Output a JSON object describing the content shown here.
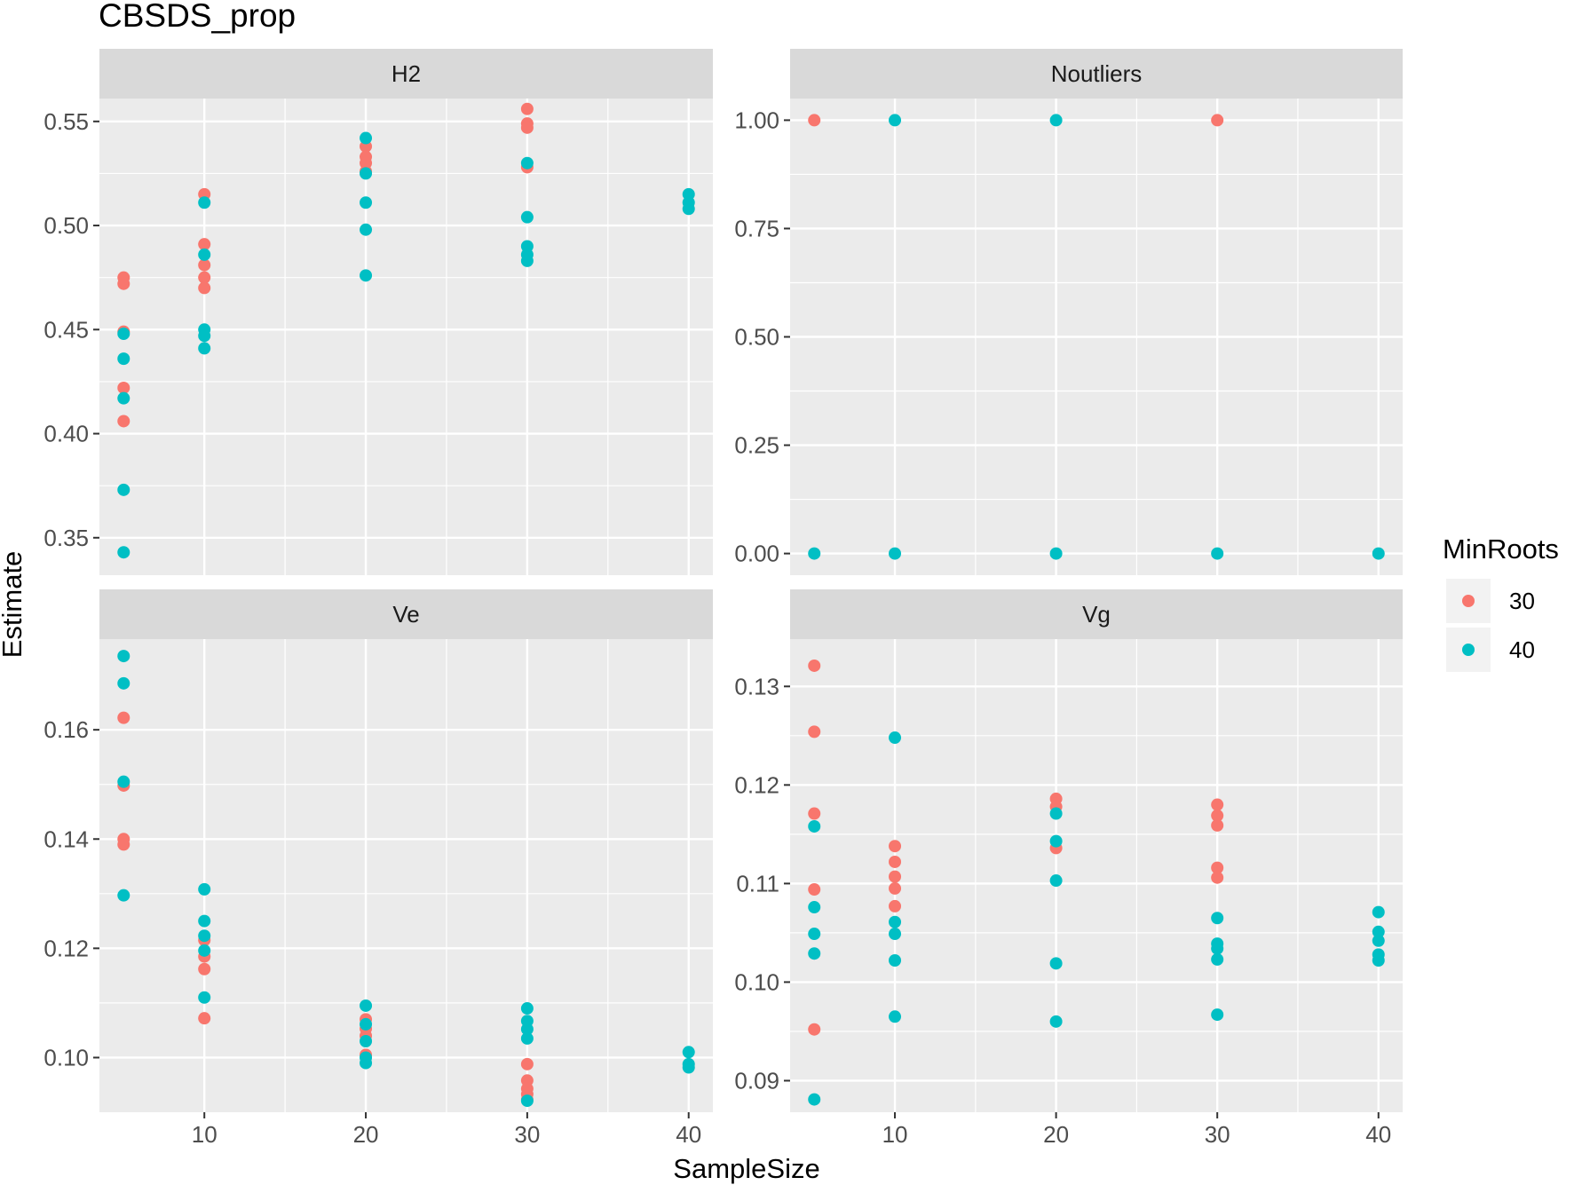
{
  "chart_data": {
    "type": "scatter",
    "title": "CBSDS_prop",
    "xlabel": "SampleSize",
    "ylabel": "Estimate",
    "xlim": [
      3.5,
      41.5
    ],
    "x_ticks": [
      10,
      20,
      30,
      40
    ],
    "legend": {
      "title": "MinRoots",
      "position": "right",
      "entries": [
        {
          "label": "30",
          "color": "#F8766D"
        },
        {
          "label": "40",
          "color": "#00BFC4"
        }
      ]
    },
    "panels": [
      {
        "name": "H2",
        "ylim": [
          0.332,
          0.561
        ],
        "y_ticks": [
          0.35,
          0.4,
          0.45,
          0.5,
          0.55
        ],
        "y_tick_labels": [
          "0.35",
          "0.40",
          "0.45",
          "0.50",
          "0.55"
        ],
        "series": [
          {
            "name": "30",
            "x": [
              5,
              5,
              5,
              5,
              5,
              10,
              10,
              10,
              10,
              10,
              20,
              20,
              20,
              20,
              30,
              30,
              30,
              30
            ],
            "y": [
              0.475,
              0.472,
              0.449,
              0.422,
              0.406,
              0.515,
              0.491,
              0.481,
              0.475,
              0.47,
              0.538,
              0.533,
              0.53,
              0.526,
              0.556,
              0.549,
              0.547,
              0.528
            ]
          },
          {
            "name": "40",
            "x": [
              5,
              5,
              5,
              5,
              5,
              10,
              10,
              10,
              10,
              10,
              20,
              20,
              20,
              20,
              20,
              30,
              30,
              30,
              30,
              30,
              40,
              40,
              40
            ],
            "y": [
              0.448,
              0.436,
              0.417,
              0.373,
              0.343,
              0.511,
              0.486,
              0.45,
              0.447,
              0.441,
              0.542,
              0.525,
              0.511,
              0.498,
              0.476,
              0.53,
              0.504,
              0.49,
              0.486,
              0.483,
              0.515,
              0.511,
              0.508
            ]
          }
        ]
      },
      {
        "name": "Noutliers",
        "ylim": [
          -0.05,
          1.05
        ],
        "y_ticks": [
          0,
          0.25,
          0.5,
          0.75,
          1.0
        ],
        "y_tick_labels": [
          "0.00",
          "0.25",
          "0.50",
          "0.75",
          "1.00"
        ],
        "series": [
          {
            "name": "30",
            "x": [
              5,
              30
            ],
            "y": [
              1,
              1
            ]
          },
          {
            "name": "40",
            "x": [
              10,
              20,
              5,
              10,
              20,
              30,
              40
            ],
            "y": [
              1,
              1,
              0,
              0,
              0,
              0,
              0
            ]
          }
        ]
      },
      {
        "name": "Ve",
        "ylim": [
          0.09,
          0.1766
        ],
        "y_ticks": [
          0.1,
          0.12,
          0.14,
          0.16
        ],
        "y_tick_labels": [
          "0.10",
          "0.12",
          "0.14",
          "0.16"
        ],
        "series": [
          {
            "name": "30",
            "x": [
              5,
              5,
              5,
              5,
              10,
              10,
              10,
              10,
              20,
              20,
              20,
              20,
              30,
              30,
              30,
              30,
              30
            ],
            "y": [
              0.1622,
              0.1498,
              0.14,
              0.139,
              0.1215,
              0.1185,
              0.1162,
              0.1072,
              0.107,
              0.1053,
              0.104,
              0.1005,
              0.0988,
              0.0958,
              0.0943,
              0.0933,
              0.0923
            ]
          },
          {
            "name": "40",
            "x": [
              5,
              5,
              5,
              5,
              10,
              10,
              10,
              10,
              10,
              20,
              20,
              20,
              20,
              20,
              30,
              30,
              30,
              30,
              30,
              40,
              40,
              40
            ],
            "y": [
              0.1735,
              0.1685,
              0.1505,
              0.1297,
              0.1308,
              0.125,
              0.1223,
              0.1196,
              0.111,
              0.1095,
              0.1061,
              0.103,
              0.1,
              0.099,
              0.109,
              0.1067,
              0.1052,
              0.1035,
              0.0921,
              0.101,
              0.0988,
              0.0982
            ]
          }
        ]
      },
      {
        "name": "Vg",
        "ylim": [
          0.0868,
          0.1348
        ],
        "y_ticks": [
          0.09,
          0.1,
          0.11,
          0.12,
          0.13
        ],
        "y_tick_labels": [
          "0.09",
          "0.10",
          "0.11",
          "0.12",
          "0.13"
        ],
        "series": [
          {
            "name": "30",
            "x": [
              5,
              5,
              5,
              5,
              5,
              10,
              10,
              10,
              10,
              10,
              20,
              20,
              20,
              30,
              30,
              30,
              30,
              30
            ],
            "y": [
              0.1321,
              0.1254,
              0.1171,
              0.1094,
              0.0952,
              0.1138,
              0.1122,
              0.1107,
              0.1095,
              0.1077,
              0.1186,
              0.1178,
              0.1136,
              0.118,
              0.1169,
              0.1159,
              0.1116,
              0.1106
            ]
          },
          {
            "name": "40",
            "x": [
              5,
              5,
              5,
              5,
              5,
              10,
              10,
              10,
              10,
              10,
              20,
              20,
              20,
              20,
              20,
              30,
              30,
              30,
              30,
              30,
              40,
              40,
              40,
              40,
              40
            ],
            "y": [
              0.1158,
              0.1076,
              0.1049,
              0.1029,
              0.0881,
              0.1248,
              0.1061,
              0.1049,
              0.1022,
              0.0965,
              0.1171,
              0.1143,
              0.1103,
              0.1019,
              0.096,
              0.1065,
              0.1039,
              0.1034,
              0.1023,
              0.0967,
              0.1071,
              0.1051,
              0.1042,
              0.1028,
              0.1022
            ]
          }
        ]
      }
    ]
  }
}
